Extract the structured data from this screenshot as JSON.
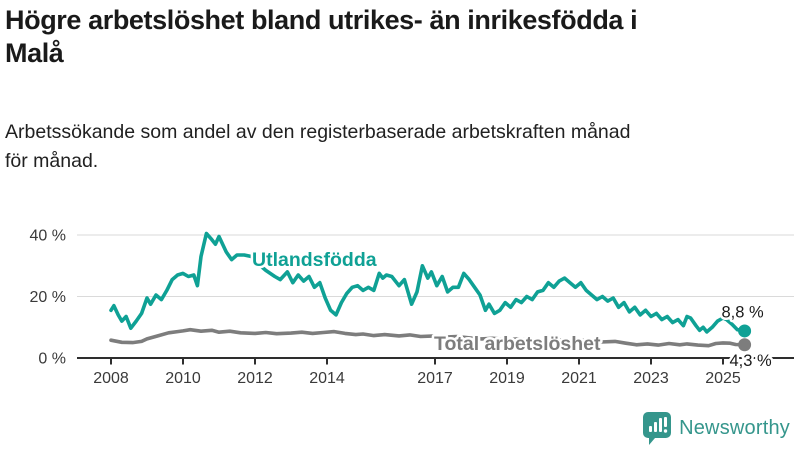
{
  "header": {
    "title": "Högre arbetslöshet bland utrikes- än inrikesfödda i\nMalå",
    "subtitle": "Arbetssökande som andel av den registerbaserade arbetskraften månad\nför månad."
  },
  "chart_data": {
    "type": "line",
    "title": "Högre arbetslöshet bland utrikes- än inrikesfödda i Malå",
    "subtitle": "Arbetssökande som andel av den registerbaserade arbetskraften månad för månad.",
    "xlabel": "",
    "ylabel": "",
    "grid": "horizontal-only",
    "legend_position": "inline-labels-on-lines",
    "x_axis": {
      "ticks": [
        2008,
        2010,
        2012,
        2014,
        2017,
        2019,
        2021,
        2023,
        2025
      ],
      "range": [
        2007.9,
        2025.9
      ]
    },
    "y_axis": {
      "unit": "%",
      "range": [
        0,
        44
      ],
      "ticks": [
        {
          "value": 0,
          "label": "0 %"
        },
        {
          "value": 20,
          "label": "20 %"
        },
        {
          "value": 40,
          "label": "40 %"
        }
      ]
    },
    "series": [
      {
        "name": "Utlandsfödda",
        "color": "#0FA195",
        "end_label": "8,8 %",
        "end_value": 8.8,
        "points": [
          [
            2008.0,
            15.5
          ],
          [
            2008.08,
            17
          ],
          [
            2008.2,
            14
          ],
          [
            2008.3,
            12
          ],
          [
            2008.42,
            13.5
          ],
          [
            2008.55,
            9.7
          ],
          [
            2008.7,
            12
          ],
          [
            2008.85,
            14.5
          ],
          [
            2009.0,
            19.5
          ],
          [
            2009.1,
            17.5
          ],
          [
            2009.25,
            20.5
          ],
          [
            2009.4,
            19
          ],
          [
            2009.55,
            22
          ],
          [
            2009.7,
            25.5
          ],
          [
            2009.85,
            27
          ],
          [
            2010.0,
            27.5
          ],
          [
            2010.15,
            26.5
          ],
          [
            2010.3,
            27
          ],
          [
            2010.4,
            23.5
          ],
          [
            2010.5,
            33
          ],
          [
            2010.65,
            40.5
          ],
          [
            2010.8,
            38.5
          ],
          [
            2010.9,
            37
          ],
          [
            2011.0,
            39.5
          ],
          [
            2011.2,
            34.5
          ],
          [
            2011.35,
            32
          ],
          [
            2011.5,
            33.5
          ],
          [
            2011.7,
            33.5
          ],
          [
            2011.9,
            33
          ],
          [
            2012.1,
            30.5
          ],
          [
            2012.3,
            28.5
          ],
          [
            2012.55,
            26.5
          ],
          [
            2012.7,
            25.5
          ],
          [
            2012.9,
            28
          ],
          [
            2013.05,
            24.5
          ],
          [
            2013.2,
            27
          ],
          [
            2013.35,
            25
          ],
          [
            2013.5,
            26.5
          ],
          [
            2013.65,
            23
          ],
          [
            2013.8,
            24.5
          ],
          [
            2013.95,
            19.5
          ],
          [
            2014.1,
            15.5
          ],
          [
            2014.25,
            14
          ],
          [
            2014.4,
            18
          ],
          [
            2014.55,
            21
          ],
          [
            2014.7,
            23
          ],
          [
            2014.85,
            23.5
          ],
          [
            2015.0,
            22
          ],
          [
            2015.15,
            23
          ],
          [
            2015.3,
            22
          ],
          [
            2015.45,
            27.5
          ],
          [
            2015.55,
            26
          ],
          [
            2015.65,
            27
          ],
          [
            2015.8,
            26.5
          ],
          [
            2016.0,
            23.5
          ],
          [
            2016.15,
            25.5
          ],
          [
            2016.35,
            17.5
          ],
          [
            2016.5,
            21.5
          ],
          [
            2016.65,
            30
          ],
          [
            2016.8,
            26
          ],
          [
            2016.9,
            28
          ],
          [
            2017.05,
            23.5
          ],
          [
            2017.2,
            26.5
          ],
          [
            2017.35,
            21.5
          ],
          [
            2017.5,
            23
          ],
          [
            2017.65,
            23
          ],
          [
            2017.8,
            27.5
          ],
          [
            2017.95,
            25.5
          ],
          [
            2018.1,
            23
          ],
          [
            2018.25,
            20.5
          ],
          [
            2018.4,
            15.5
          ],
          [
            2018.5,
            17.5
          ],
          [
            2018.65,
            14.5
          ],
          [
            2018.8,
            15.5
          ],
          [
            2018.95,
            18
          ],
          [
            2019.1,
            16.5
          ],
          [
            2019.25,
            19
          ],
          [
            2019.4,
            18
          ],
          [
            2019.55,
            20
          ],
          [
            2019.7,
            19
          ],
          [
            2019.85,
            21.5
          ],
          [
            2020.0,
            22
          ],
          [
            2020.15,
            24.5
          ],
          [
            2020.3,
            23
          ],
          [
            2020.45,
            25
          ],
          [
            2020.6,
            26
          ],
          [
            2020.75,
            24.5
          ],
          [
            2020.9,
            23
          ],
          [
            2021.05,
            24.5
          ],
          [
            2021.2,
            22
          ],
          [
            2021.35,
            20.5
          ],
          [
            2021.5,
            19
          ],
          [
            2021.65,
            20
          ],
          [
            2021.8,
            18.5
          ],
          [
            2021.95,
            19.5
          ],
          [
            2022.1,
            16.5
          ],
          [
            2022.25,
            18
          ],
          [
            2022.4,
            15
          ],
          [
            2022.55,
            16.5
          ],
          [
            2022.7,
            14
          ],
          [
            2022.85,
            15.5
          ],
          [
            2023.0,
            13.5
          ],
          [
            2023.15,
            14.5
          ],
          [
            2023.3,
            12.5
          ],
          [
            2023.45,
            13.5
          ],
          [
            2023.6,
            11.5
          ],
          [
            2023.75,
            12.5
          ],
          [
            2023.9,
            10.5
          ],
          [
            2024.0,
            13.5
          ],
          [
            2024.1,
            13
          ],
          [
            2024.25,
            10.5
          ],
          [
            2024.35,
            9
          ],
          [
            2024.45,
            10
          ],
          [
            2024.55,
            8.5
          ],
          [
            2024.7,
            10
          ],
          [
            2024.85,
            12
          ],
          [
            2025.0,
            13
          ],
          [
            2025.1,
            12.5
          ],
          [
            2025.25,
            11
          ],
          [
            2025.4,
            9.2
          ],
          [
            2025.6,
            8.8
          ]
        ]
      },
      {
        "name": "Total arbetslöshet",
        "color": "#7D7D7D",
        "end_label": "4,3 %",
        "end_value": 4.3,
        "points": [
          [
            2008.0,
            5.8
          ],
          [
            2008.3,
            5.1
          ],
          [
            2008.6,
            5.0
          ],
          [
            2008.85,
            5.4
          ],
          [
            2009.0,
            6.2
          ],
          [
            2009.3,
            7.2
          ],
          [
            2009.6,
            8.2
          ],
          [
            2009.85,
            8.6
          ],
          [
            2010.0,
            8.8
          ],
          [
            2010.2,
            9.2
          ],
          [
            2010.5,
            8.7
          ],
          [
            2010.8,
            9.0
          ],
          [
            2011.0,
            8.4
          ],
          [
            2011.3,
            8.7
          ],
          [
            2011.6,
            8.2
          ],
          [
            2012.0,
            8.0
          ],
          [
            2012.3,
            8.3
          ],
          [
            2012.6,
            7.9
          ],
          [
            2013.0,
            8.1
          ],
          [
            2013.3,
            8.4
          ],
          [
            2013.6,
            8.0
          ],
          [
            2013.9,
            8.3
          ],
          [
            2014.2,
            8.6
          ],
          [
            2014.5,
            8.0
          ],
          [
            2014.8,
            7.6
          ],
          [
            2015.0,
            7.8
          ],
          [
            2015.3,
            7.3
          ],
          [
            2015.6,
            7.6
          ],
          [
            2016.0,
            7.2
          ],
          [
            2016.3,
            7.5
          ],
          [
            2016.6,
            7.0
          ],
          [
            2017.0,
            7.2
          ],
          [
            2017.3,
            6.8
          ],
          [
            2017.6,
            7.0
          ],
          [
            2018.0,
            6.5
          ],
          [
            2018.3,
            6.2
          ],
          [
            2018.6,
            6.4
          ],
          [
            2019.0,
            6.0
          ],
          [
            2019.3,
            6.2
          ],
          [
            2019.6,
            5.8
          ],
          [
            2020.0,
            5.5
          ],
          [
            2020.3,
            6.0
          ],
          [
            2020.6,
            5.7
          ],
          [
            2021.0,
            5.9
          ],
          [
            2021.3,
            5.5
          ],
          [
            2021.6,
            5.2
          ],
          [
            2022.0,
            5.4
          ],
          [
            2022.3,
            4.8
          ],
          [
            2022.6,
            4.3
          ],
          [
            2022.9,
            4.6
          ],
          [
            2023.2,
            4.2
          ],
          [
            2023.5,
            4.7
          ],
          [
            2023.8,
            4.3
          ],
          [
            2024.0,
            4.6
          ],
          [
            2024.3,
            4.2
          ],
          [
            2024.6,
            4.0
          ],
          [
            2024.8,
            4.7
          ],
          [
            2025.0,
            4.9
          ],
          [
            2025.2,
            4.8
          ],
          [
            2025.35,
            4.4
          ],
          [
            2025.6,
            4.3
          ]
        ]
      }
    ]
  },
  "footer": {
    "brand": "Newsworthy",
    "brand_color": "#35968C",
    "logo_icon": "bar-chart-speech-bubble"
  }
}
